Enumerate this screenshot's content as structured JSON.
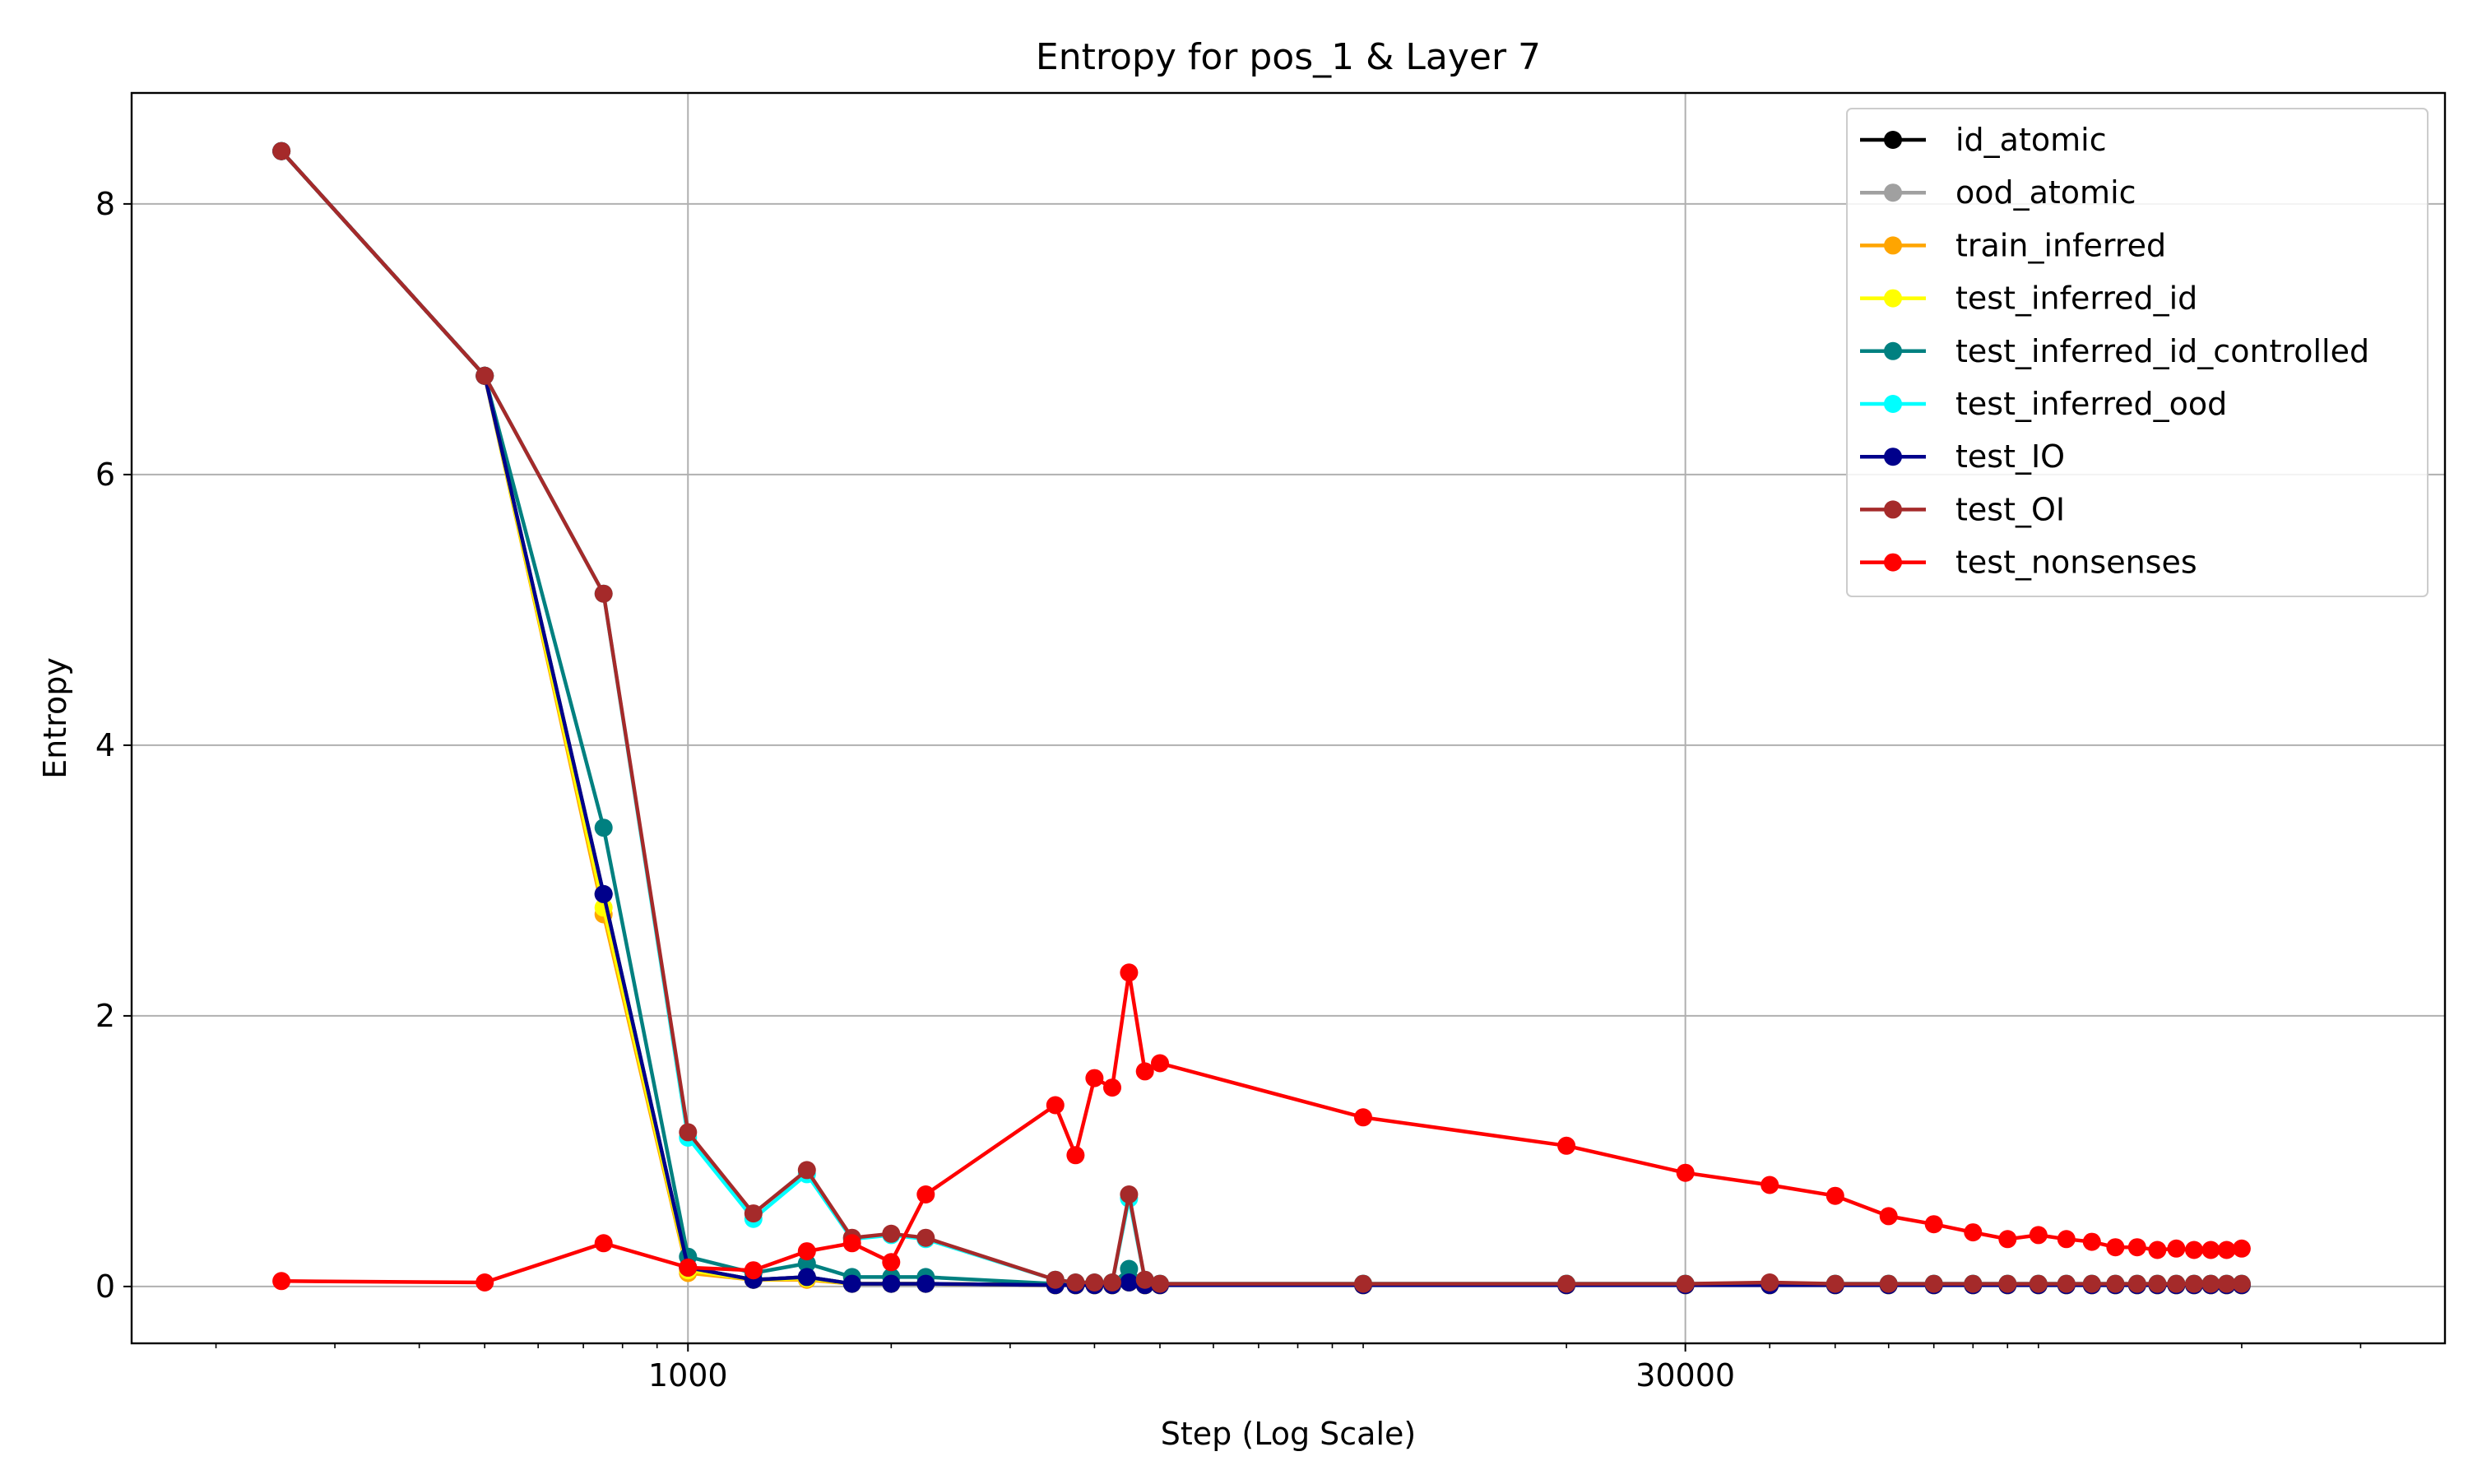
{
  "chart_data": {
    "type": "line",
    "title": "Entropy for pos_1 & Layer 7",
    "xlabel": "Step (Log Scale)",
    "ylabel": "Entropy",
    "x_scale": "log",
    "xlim": [
      150,
      400000
    ],
    "ylim": [
      -0.42,
      8.82
    ],
    "x_ticks": [
      1000,
      30000
    ],
    "x_tick_labels": [
      "1000",
      "30000"
    ],
    "y_ticks": [
      0,
      2,
      4,
      6,
      8
    ],
    "y_tick_labels": [
      "0",
      "2",
      "4",
      "6",
      "8"
    ],
    "grid": true,
    "legend_position": "top-right",
    "x": [
      250,
      500,
      750,
      1000,
      1250,
      1500,
      1750,
      2000,
      2250,
      3500,
      3750,
      4000,
      4250,
      4500,
      4750,
      5000,
      10000,
      20000,
      30000,
      40000,
      50000,
      60000,
      70000,
      80000,
      90000,
      100000,
      110000,
      120000,
      130000,
      140000,
      150000,
      160000,
      170000,
      180000,
      190000,
      200000
    ],
    "series": [
      {
        "name": "id_atomic",
        "color": "#000000",
        "values": [
          8.39,
          6.73,
          2.9,
          0.14,
          0.05,
          0.07,
          0.02,
          0.02,
          0.02,
          0.01,
          0.01,
          0.01,
          0.01,
          0.03,
          0.01,
          0.01,
          0.01,
          0.01,
          0.01,
          0.01,
          0.01,
          0.01,
          0.01,
          0.01,
          0.01,
          0.01,
          0.01,
          0.01,
          0.01,
          0.01,
          0.01,
          0.01,
          0.01,
          0.01,
          0.01,
          0.01
        ]
      },
      {
        "name": "ood_atomic",
        "color": "#a0a0a0",
        "values": [
          8.39,
          6.73,
          2.9,
          0.14,
          0.05,
          0.07,
          0.02,
          0.02,
          0.02,
          0.01,
          0.01,
          0.01,
          0.01,
          0.03,
          0.01,
          0.01,
          0.01,
          0.01,
          0.01,
          0.01,
          0.01,
          0.01,
          0.01,
          0.01,
          0.01,
          0.01,
          0.01,
          0.01,
          0.01,
          0.01,
          0.01,
          0.01,
          0.01,
          0.01,
          0.01,
          0.01
        ]
      },
      {
        "name": "train_inferred",
        "color": "#ffa500",
        "values": [
          8.39,
          6.73,
          2.75,
          0.1,
          0.05,
          0.05,
          0.02,
          0.02,
          0.02,
          0.01,
          0.01,
          0.01,
          0.01,
          0.03,
          0.01,
          0.01,
          0.01,
          0.01,
          0.01,
          0.01,
          0.01,
          0.01,
          0.01,
          0.01,
          0.01,
          0.01,
          0.01,
          0.01,
          0.01,
          0.01,
          0.01,
          0.01,
          0.01,
          0.01,
          0.01,
          0.01
        ]
      },
      {
        "name": "test_inferred_id",
        "color": "#ffff00",
        "values": [
          8.39,
          6.73,
          2.8,
          0.12,
          0.05,
          0.06,
          0.02,
          0.02,
          0.02,
          0.01,
          0.01,
          0.01,
          0.01,
          0.03,
          0.01,
          0.01,
          0.01,
          0.01,
          0.01,
          0.01,
          0.01,
          0.01,
          0.01,
          0.01,
          0.01,
          0.01,
          0.01,
          0.01,
          0.01,
          0.01,
          0.01,
          0.01,
          0.01,
          0.01,
          0.01,
          0.01
        ]
      },
      {
        "name": "test_inferred_id_controlled",
        "color": "#008080",
        "values": [
          8.39,
          6.73,
          3.39,
          0.22,
          0.1,
          0.17,
          0.07,
          0.07,
          0.07,
          0.02,
          0.02,
          0.02,
          0.02,
          0.13,
          0.02,
          0.02,
          0.02,
          0.02,
          0.02,
          0.02,
          0.02,
          0.02,
          0.02,
          0.02,
          0.02,
          0.02,
          0.02,
          0.02,
          0.02,
          0.02,
          0.02,
          0.02,
          0.02,
          0.02,
          0.02,
          0.02
        ]
      },
      {
        "name": "test_inferred_ood",
        "color": "#00ffff",
        "values": [
          8.39,
          6.73,
          5.12,
          1.1,
          0.5,
          0.83,
          0.35,
          0.38,
          0.35,
          0.05,
          0.03,
          0.03,
          0.03,
          0.65,
          0.05,
          0.02,
          0.02,
          0.02,
          0.02,
          0.02,
          0.02,
          0.02,
          0.02,
          0.02,
          0.02,
          0.02,
          0.02,
          0.02,
          0.02,
          0.02,
          0.02,
          0.02,
          0.02,
          0.02,
          0.02,
          0.02
        ]
      },
      {
        "name": "test_IO",
        "color": "#00008b",
        "values": [
          8.39,
          6.73,
          2.9,
          0.14,
          0.05,
          0.07,
          0.02,
          0.02,
          0.02,
          0.01,
          0.01,
          0.01,
          0.01,
          0.03,
          0.01,
          0.01,
          0.01,
          0.01,
          0.01,
          0.01,
          0.01,
          0.01,
          0.01,
          0.01,
          0.01,
          0.01,
          0.01,
          0.01,
          0.01,
          0.01,
          0.01,
          0.01,
          0.01,
          0.01,
          0.01,
          0.01
        ]
      },
      {
        "name": "test_OI",
        "color": "#a52a2a",
        "values": [
          8.39,
          6.73,
          5.12,
          1.14,
          0.54,
          0.86,
          0.36,
          0.39,
          0.36,
          0.05,
          0.03,
          0.03,
          0.03,
          0.68,
          0.05,
          0.02,
          0.02,
          0.02,
          0.02,
          0.03,
          0.02,
          0.02,
          0.02,
          0.02,
          0.02,
          0.02,
          0.02,
          0.02,
          0.02,
          0.02,
          0.02,
          0.02,
          0.02,
          0.02,
          0.02,
          0.02
        ]
      },
      {
        "name": "test_nonsenses",
        "color": "#ff0000",
        "values": [
          0.04,
          0.03,
          0.32,
          0.14,
          0.12,
          0.26,
          0.32,
          0.18,
          0.68,
          1.34,
          0.97,
          1.54,
          1.47,
          2.32,
          1.59,
          1.65,
          1.25,
          1.04,
          0.84,
          0.75,
          0.67,
          0.52,
          0.46,
          0.4,
          0.35,
          0.38,
          0.35,
          0.33,
          0.29,
          0.29,
          0.27,
          0.28,
          0.27,
          0.27,
          0.27,
          0.28
        ]
      }
    ]
  }
}
